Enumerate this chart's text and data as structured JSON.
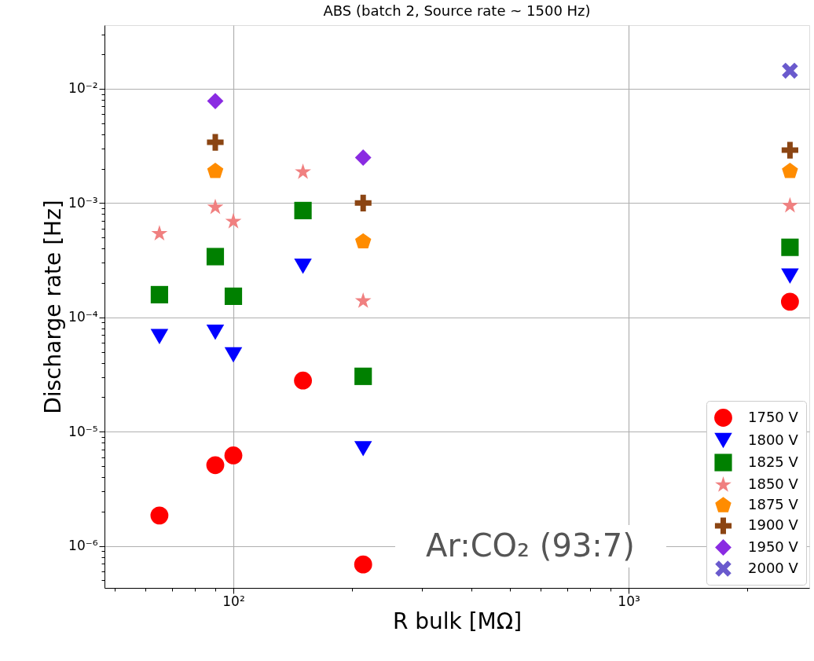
{
  "chart_data": {
    "type": "scatter",
    "title": "ABS (batch 2, Source rate ~ 1500 Hz)",
    "xlabel": "R bulk [MΩ]",
    "ylabel": "Discharge rate [Hz]",
    "log": "xy",
    "grid": true,
    "legend": "bottom right",
    "xlim": [
      47.2,
      2865
    ],
    "ylim": [
      4.3e-07,
      0.036
    ],
    "xticks": [
      {
        "value": 50,
        "label": null
      },
      {
        "value": 60,
        "label": null
      },
      {
        "value": 70,
        "label": null
      },
      {
        "value": 80,
        "label": null
      },
      {
        "value": 90,
        "label": null
      },
      {
        "value": 100,
        "label": "10²"
      },
      {
        "value": 200,
        "label": null
      },
      {
        "value": 300,
        "label": null
      },
      {
        "value": 400,
        "label": null
      },
      {
        "value": 500,
        "label": null
      },
      {
        "value": 600,
        "label": null
      },
      {
        "value": 700,
        "label": null
      },
      {
        "value": 800,
        "label": null
      },
      {
        "value": 900,
        "label": null
      },
      {
        "value": 1000,
        "label": "10³"
      },
      {
        "value": 2000,
        "label": null
      }
    ],
    "yticks": [
      {
        "value": 5e-07,
        "label": null
      },
      {
        "value": 6e-07,
        "label": null
      },
      {
        "value": 7e-07,
        "label": null
      },
      {
        "value": 8e-07,
        "label": null
      },
      {
        "value": 9e-07,
        "label": null
      },
      {
        "value": 1e-06,
        "label": "10⁻⁶"
      },
      {
        "value": 2e-06,
        "label": null
      },
      {
        "value": 3e-06,
        "label": null
      },
      {
        "value": 4e-06,
        "label": null
      },
      {
        "value": 5e-06,
        "label": null
      },
      {
        "value": 6e-06,
        "label": null
      },
      {
        "value": 7e-06,
        "label": null
      },
      {
        "value": 8e-06,
        "label": null
      },
      {
        "value": 9e-06,
        "label": null
      },
      {
        "value": 1e-05,
        "label": "10⁻⁵"
      },
      {
        "value": 2e-05,
        "label": null
      },
      {
        "value": 3e-05,
        "label": null
      },
      {
        "value": 4e-05,
        "label": null
      },
      {
        "value": 5e-05,
        "label": null
      },
      {
        "value": 6e-05,
        "label": null
      },
      {
        "value": 7e-05,
        "label": null
      },
      {
        "value": 8e-05,
        "label": null
      },
      {
        "value": 9e-05,
        "label": null
      },
      {
        "value": 0.0001,
        "label": "10⁻⁴"
      },
      {
        "value": 0.0002,
        "label": null
      },
      {
        "value": 0.0003,
        "label": null
      },
      {
        "value": 0.0004,
        "label": null
      },
      {
        "value": 0.0005,
        "label": null
      },
      {
        "value": 0.0006,
        "label": null
      },
      {
        "value": 0.0007,
        "label": null
      },
      {
        "value": 0.0008,
        "label": null
      },
      {
        "value": 0.0009,
        "label": null
      },
      {
        "value": 0.001,
        "label": "10⁻³"
      },
      {
        "value": 0.002,
        "label": null
      },
      {
        "value": 0.003,
        "label": null
      },
      {
        "value": 0.004,
        "label": null
      },
      {
        "value": 0.005,
        "label": null
      },
      {
        "value": 0.006,
        "label": null
      },
      {
        "value": 0.007,
        "label": null
      },
      {
        "value": 0.008,
        "label": null
      },
      {
        "value": 0.009,
        "label": null
      },
      {
        "value": 0.01,
        "label": "10⁻²"
      },
      {
        "value": 0.02,
        "label": null
      },
      {
        "value": 0.03,
        "label": null
      }
    ],
    "annotations": [
      "Ar:CO₂ (93:7)"
    ],
    "series": [
      {
        "name": "1750 V",
        "color": "#ff0000",
        "marker": "circle",
        "x": [
          65,
          90,
          100,
          150,
          213,
          2560
        ],
        "values": [
          1.85e-06,
          5.1e-06,
          6.2e-06,
          2.8e-05,
          6.9e-07,
          0.000137
        ]
      },
      {
        "name": "1800 V",
        "color": "#0000ff",
        "marker": "triangle_down",
        "x": [
          65,
          90,
          100,
          150,
          213,
          2560
        ],
        "values": [
          6.8e-05,
          7.4e-05,
          4.7e-05,
          0.00028,
          7.1e-06,
          0.00023
        ]
      },
      {
        "name": "1825 V",
        "color": "#008000",
        "marker": "square",
        "x": [
          65,
          90,
          100,
          150,
          213,
          2560
        ],
        "values": [
          0.000158,
          0.00034,
          0.000153,
          0.00086,
          3.05e-05,
          0.00041
        ]
      },
      {
        "name": "1850 V",
        "color": "#f08080",
        "marker": "star",
        "x": [
          65,
          90,
          100,
          150,
          213,
          2560
        ],
        "values": [
          0.00054,
          0.00092,
          0.00069,
          0.00187,
          0.000139,
          0.00095
        ]
      },
      {
        "name": "1875 V",
        "color": "#ff8c00",
        "x": [
          90,
          213,
          2560
        ],
        "values": [
          0.0019,
          0.00046,
          0.0019
        ]
      },
      {
        "name": "1900 V",
        "color": "#8b4513",
        "marker": "plus",
        "x": [
          90,
          213,
          2560
        ],
        "values": [
          0.0034,
          0.001,
          0.0029
        ]
      },
      {
        "name": "1950 V",
        "color": "#8a2be2",
        "marker": "diamond",
        "x": [
          90,
          213
        ],
        "values": [
          0.0078,
          0.0025
        ]
      },
      {
        "name": "2000 V",
        "color": "#6a5acd",
        "marker": "x",
        "x": [
          2560
        ],
        "values": [
          0.0144
        ]
      }
    ]
  }
}
